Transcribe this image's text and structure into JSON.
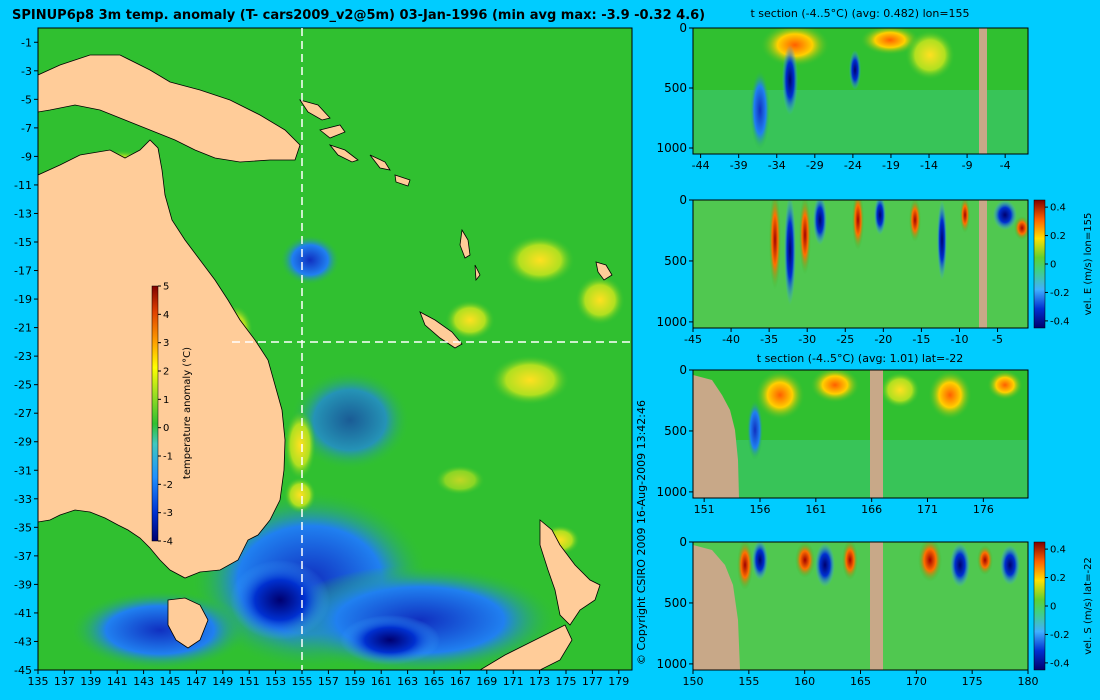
{
  "main_title": "SPINUP6p8 3m temp. anomaly (T- cars2009_v2@5m) 03-Jan-1996 (min avg max: -3.9 -0.32 4.6)",
  "copyright": "© Copyright CSIRO 2009   16-Aug-2009 13:42:46",
  "colors": {
    "background": "#00ccff",
    "land": "#ffcc99",
    "section_land": "#c8a888",
    "ocean_base": "#30c030",
    "crosshair": "#ffffff"
  },
  "chart_data": [
    {
      "id": "map",
      "type": "heatmap",
      "title": "SPINUP6p8 3m temp. anomaly (T- cars2009_v2@5m) 03-Jan-1996 (min avg max: -3.9 -0.32 4.6)",
      "x_ticks": [
        "135",
        "137",
        "139",
        "141",
        "143",
        "145",
        "147",
        "149",
        "151",
        "153",
        "155",
        "157",
        "159",
        "161",
        "163",
        "165",
        "167",
        "169",
        "171",
        "173",
        "175",
        "177",
        "179"
      ],
      "y_ticks": [
        "-1",
        "-3",
        "-5",
        "-7",
        "-9",
        "-11",
        "-13",
        "-15",
        "-17",
        "-19",
        "-21",
        "-23",
        "-25",
        "-27",
        "-29",
        "-31",
        "-33",
        "-35",
        "-37",
        "-39",
        "-41",
        "-43",
        "-45"
      ],
      "xlim": [
        135,
        180
      ],
      "ylim": [
        -45,
        0
      ],
      "crosshair": {
        "lon": 155,
        "lat": -22
      },
      "colorbar": {
        "label": "temperature anomaly (°C)",
        "ticks": [
          "5",
          "4",
          "3",
          "2",
          "1",
          "0",
          "-1",
          "-2",
          "-3",
          "-4"
        ],
        "range": [
          -4,
          5
        ]
      },
      "summary": {
        "min": -3.9,
        "avg": -0.32,
        "max": 4.6
      }
    },
    {
      "id": "t-section-lon",
      "type": "heatmap",
      "title": "t section (-4..5°C) (avg: 0.482) lon=155",
      "x_ticks": [
        "-44",
        "-39",
        "-34",
        "-29",
        "-24",
        "-19",
        "-14",
        "-9",
        "-4"
      ],
      "y_ticks": [
        "0",
        "500",
        "1000"
      ],
      "xlim": [
        -45,
        -1
      ],
      "ylim": [
        1050,
        0
      ],
      "avg": 0.482
    },
    {
      "id": "vel-e-section",
      "type": "heatmap",
      "title": "",
      "x_ticks": [
        "-45",
        "-40",
        "-35",
        "-30",
        "-25",
        "-20",
        "-15",
        "-10",
        "-5"
      ],
      "y_ticks": [
        "0",
        "500",
        "1000"
      ],
      "xlim": [
        -45,
        -1
      ],
      "ylim": [
        1050,
        0
      ],
      "colorbar": {
        "label": "vel. E (m/s) lon=155",
        "ticks": [
          "0.4",
          "0.2",
          "0",
          "-0.2",
          "-0.4"
        ],
        "range": [
          -0.45,
          0.45
        ]
      }
    },
    {
      "id": "t-section-lat",
      "type": "heatmap",
      "title": "t section (-4..5°C) (avg: 1.01) lat=-22",
      "x_ticks": [
        "151",
        "156",
        "161",
        "166",
        "171",
        "176"
      ],
      "y_ticks": [
        "0",
        "500",
        "1000"
      ],
      "xlim": [
        150,
        180
      ],
      "ylim": [
        1050,
        0
      ],
      "avg": 1.01
    },
    {
      "id": "vel-s-section",
      "type": "heatmap",
      "title": "",
      "x_ticks": [
        "150",
        "155",
        "160",
        "165",
        "170",
        "175",
        "180"
      ],
      "y_ticks": [
        "0",
        "500",
        "1000"
      ],
      "xlim": [
        150,
        180
      ],
      "ylim": [
        1050,
        0
      ],
      "colorbar": {
        "label": "vel. S (m/s) lat=-22",
        "ticks": [
          "0.4",
          "0.2",
          "0",
          "-0.2",
          "-0.4"
        ],
        "range": [
          -0.45,
          0.45
        ]
      }
    }
  ]
}
